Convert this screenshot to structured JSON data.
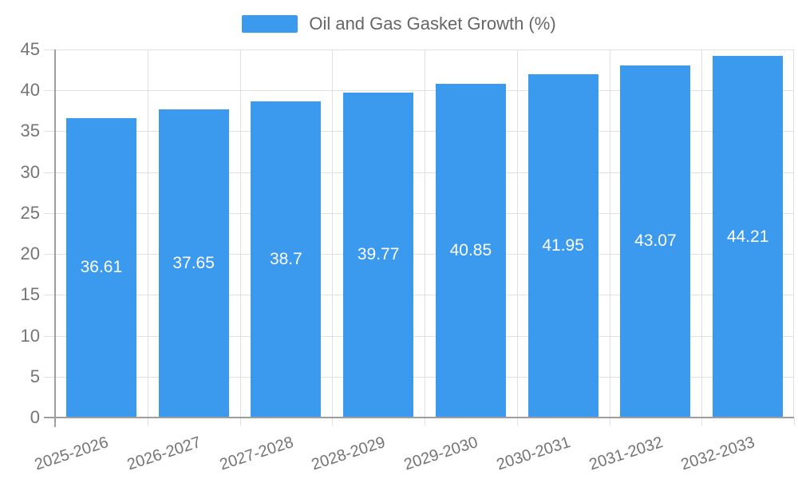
{
  "legend": {
    "label": "Oil and Gas Gasket Growth (%)"
  },
  "chart_data": {
    "type": "bar",
    "title": "",
    "series_name": "Oil and Gas Gasket Growth (%)",
    "categories": [
      "2025-2026",
      "2026-2027",
      "2027-2028",
      "2028-2029",
      "2029-2030",
      "2030-2031",
      "2031-2032",
      "2032-2033"
    ],
    "values": [
      36.61,
      37.65,
      38.7,
      39.77,
      40.85,
      41.95,
      43.07,
      44.21
    ],
    "value_labels": [
      "36.61",
      "37.65",
      "38.7",
      "39.77",
      "40.85",
      "41.95",
      "43.07",
      "44.21"
    ],
    "xlabel": "",
    "ylabel": "",
    "ylim": [
      0,
      45
    ],
    "yticks": [
      0,
      5,
      10,
      15,
      20,
      25,
      30,
      35,
      40,
      45
    ],
    "grid": true,
    "legend_position": "top-center",
    "x_tick_rotation_deg": -18
  },
  "colors": {
    "bar": "#3B99EE",
    "grid": "#E0E0E0",
    "axis": "#9E9E9E",
    "tick_text": "#757575",
    "value_label_text": "#FFFFFF",
    "legend_text": "#666666",
    "background": "#FFFFFF"
  }
}
